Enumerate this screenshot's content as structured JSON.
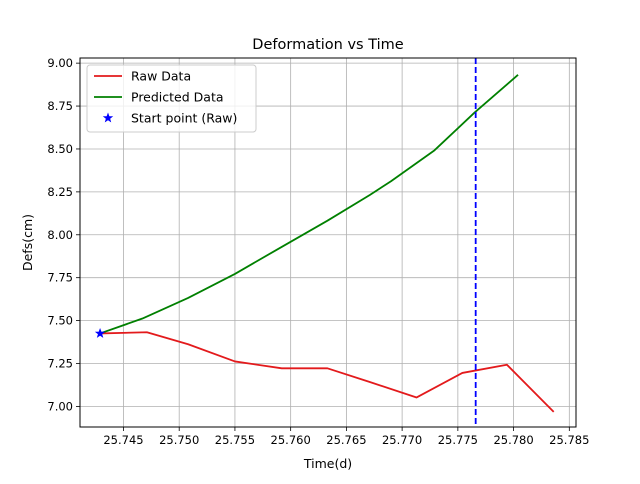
{
  "chart_data": {
    "type": "line",
    "title": "Deformation vs Time",
    "xlabel": "Time(d)",
    "ylabel": "Defs(cm)",
    "xlim": [
      25.7411,
      25.7856
    ],
    "ylim": [
      6.88,
      9.03
    ],
    "grid": true,
    "legend_position": "upper-left",
    "x_ticks": [
      {
        "value": 25.745,
        "label": "25.745"
      },
      {
        "value": 25.75,
        "label": "25.750"
      },
      {
        "value": 25.755,
        "label": "25.755"
      },
      {
        "value": 25.76,
        "label": "25.760"
      },
      {
        "value": 25.765,
        "label": "25.765"
      },
      {
        "value": 25.77,
        "label": "25.770"
      },
      {
        "value": 25.775,
        "label": "25.775"
      },
      {
        "value": 25.78,
        "label": "25.780"
      },
      {
        "value": 25.785,
        "label": "25.785"
      }
    ],
    "y_ticks": [
      {
        "value": 7.0,
        "label": "7.00"
      },
      {
        "value": 7.25,
        "label": "7.25"
      },
      {
        "value": 7.5,
        "label": "7.50"
      },
      {
        "value": 7.75,
        "label": "7.75"
      },
      {
        "value": 8.0,
        "label": "8.00"
      },
      {
        "value": 8.25,
        "label": "8.25"
      },
      {
        "value": 8.5,
        "label": "8.50"
      },
      {
        "value": 8.75,
        "label": "8.75"
      },
      {
        "value": 9.0,
        "label": "9.00"
      }
    ],
    "series": [
      {
        "name": "Raw Data",
        "color": "#e31a1c",
        "style": "solid",
        "x": [
          25.7429,
          25.7471,
          25.7508,
          25.755,
          25.7592,
          25.7633,
          25.7671,
          25.7713,
          25.7754,
          25.7794,
          25.7836
        ],
        "y": [
          7.425,
          7.432,
          7.362,
          7.262,
          7.222,
          7.222,
          7.142,
          7.052,
          7.195,
          7.243,
          6.968
        ]
      },
      {
        "name": "Predicted Data",
        "color": "#008000",
        "style": "solid",
        "x": [
          25.7429,
          25.7467,
          25.7508,
          25.755,
          25.759,
          25.7633,
          25.7671,
          25.769,
          25.7729,
          25.7765,
          25.7804
        ],
        "y": [
          7.425,
          7.512,
          7.632,
          7.772,
          7.922,
          8.082,
          8.232,
          8.312,
          8.492,
          8.712,
          8.932
        ]
      }
    ],
    "markers": [
      {
        "name": "Start point (Raw)",
        "x": 25.7429,
        "y": 7.425,
        "symbol": "star",
        "color": "#0000ff"
      }
    ],
    "vlines": [
      {
        "x": 25.7766,
        "color": "#0000ff",
        "style": "dashed"
      }
    ]
  }
}
